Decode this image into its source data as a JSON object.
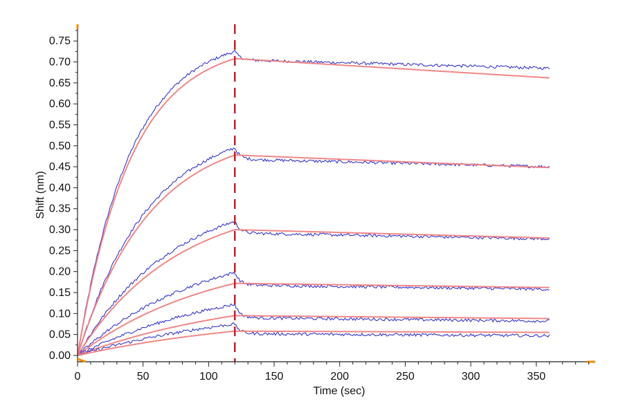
{
  "chart_data": {
    "type": "line",
    "xlabel": "Time (sec)",
    "ylabel": "Shift (nm)",
    "xlim": [
      0,
      395
    ],
    "ylim": [
      -0.015,
      0.79
    ],
    "x_ticks": [
      0,
      50,
      100,
      150,
      200,
      250,
      300,
      350
    ],
    "x_tick_labels": [
      "0",
      "50",
      "100",
      "150",
      "200",
      "250",
      "300",
      "350"
    ],
    "y_ticks": [
      0.0,
      0.05,
      0.1,
      0.15,
      0.2,
      0.25,
      0.3,
      0.35,
      0.4,
      0.45,
      0.5,
      0.55,
      0.6,
      0.65,
      0.7,
      0.75
    ],
    "y_tick_labels": [
      "0.00",
      "0.05",
      "0.10",
      "0.15",
      "0.20",
      "0.25",
      "0.30",
      "0.35",
      "0.40",
      "0.45",
      "0.50",
      "0.55",
      "0.60",
      "0.65",
      "0.70",
      "0.75"
    ],
    "association_end": 120,
    "time_end": 360,
    "marker_line": {
      "x": 120,
      "color": "#c81e28",
      "style": "dashed"
    },
    "series": [
      {
        "kind": "measured",
        "color": "#1e1ec8",
        "peak": 0.725,
        "plateau": 0.705,
        "end": 0.685
      },
      {
        "kind": "fit",
        "color": "#f08080",
        "peak": 0.708,
        "end": 0.662
      },
      {
        "kind": "measured",
        "color": "#1e1ec8",
        "peak": 0.495,
        "plateau": 0.468,
        "end": 0.45
      },
      {
        "kind": "fit",
        "color": "#f08080",
        "peak": 0.478,
        "end": 0.448
      },
      {
        "kind": "measured",
        "color": "#1e1ec8",
        "peak": 0.32,
        "plateau": 0.292,
        "end": 0.278
      },
      {
        "kind": "fit",
        "color": "#f08080",
        "peak": 0.3,
        "end": 0.28
      },
      {
        "kind": "measured",
        "color": "#1e1ec8",
        "peak": 0.198,
        "plateau": 0.168,
        "end": 0.158
      },
      {
        "kind": "fit",
        "color": "#f08080",
        "peak": 0.172,
        "end": 0.162
      },
      {
        "kind": "measured",
        "color": "#1e1ec8",
        "peak": 0.122,
        "plateau": 0.09,
        "end": 0.082
      },
      {
        "kind": "fit",
        "color": "#f08080",
        "peak": 0.095,
        "end": 0.088
      },
      {
        "kind": "measured",
        "color": "#1e1ec8",
        "peak": 0.075,
        "plateau": 0.052,
        "end": 0.047
      },
      {
        "kind": "fit",
        "color": "#f08080",
        "peak": 0.058,
        "end": 0.055
      }
    ],
    "axis_accent_color": "#f08c00"
  }
}
